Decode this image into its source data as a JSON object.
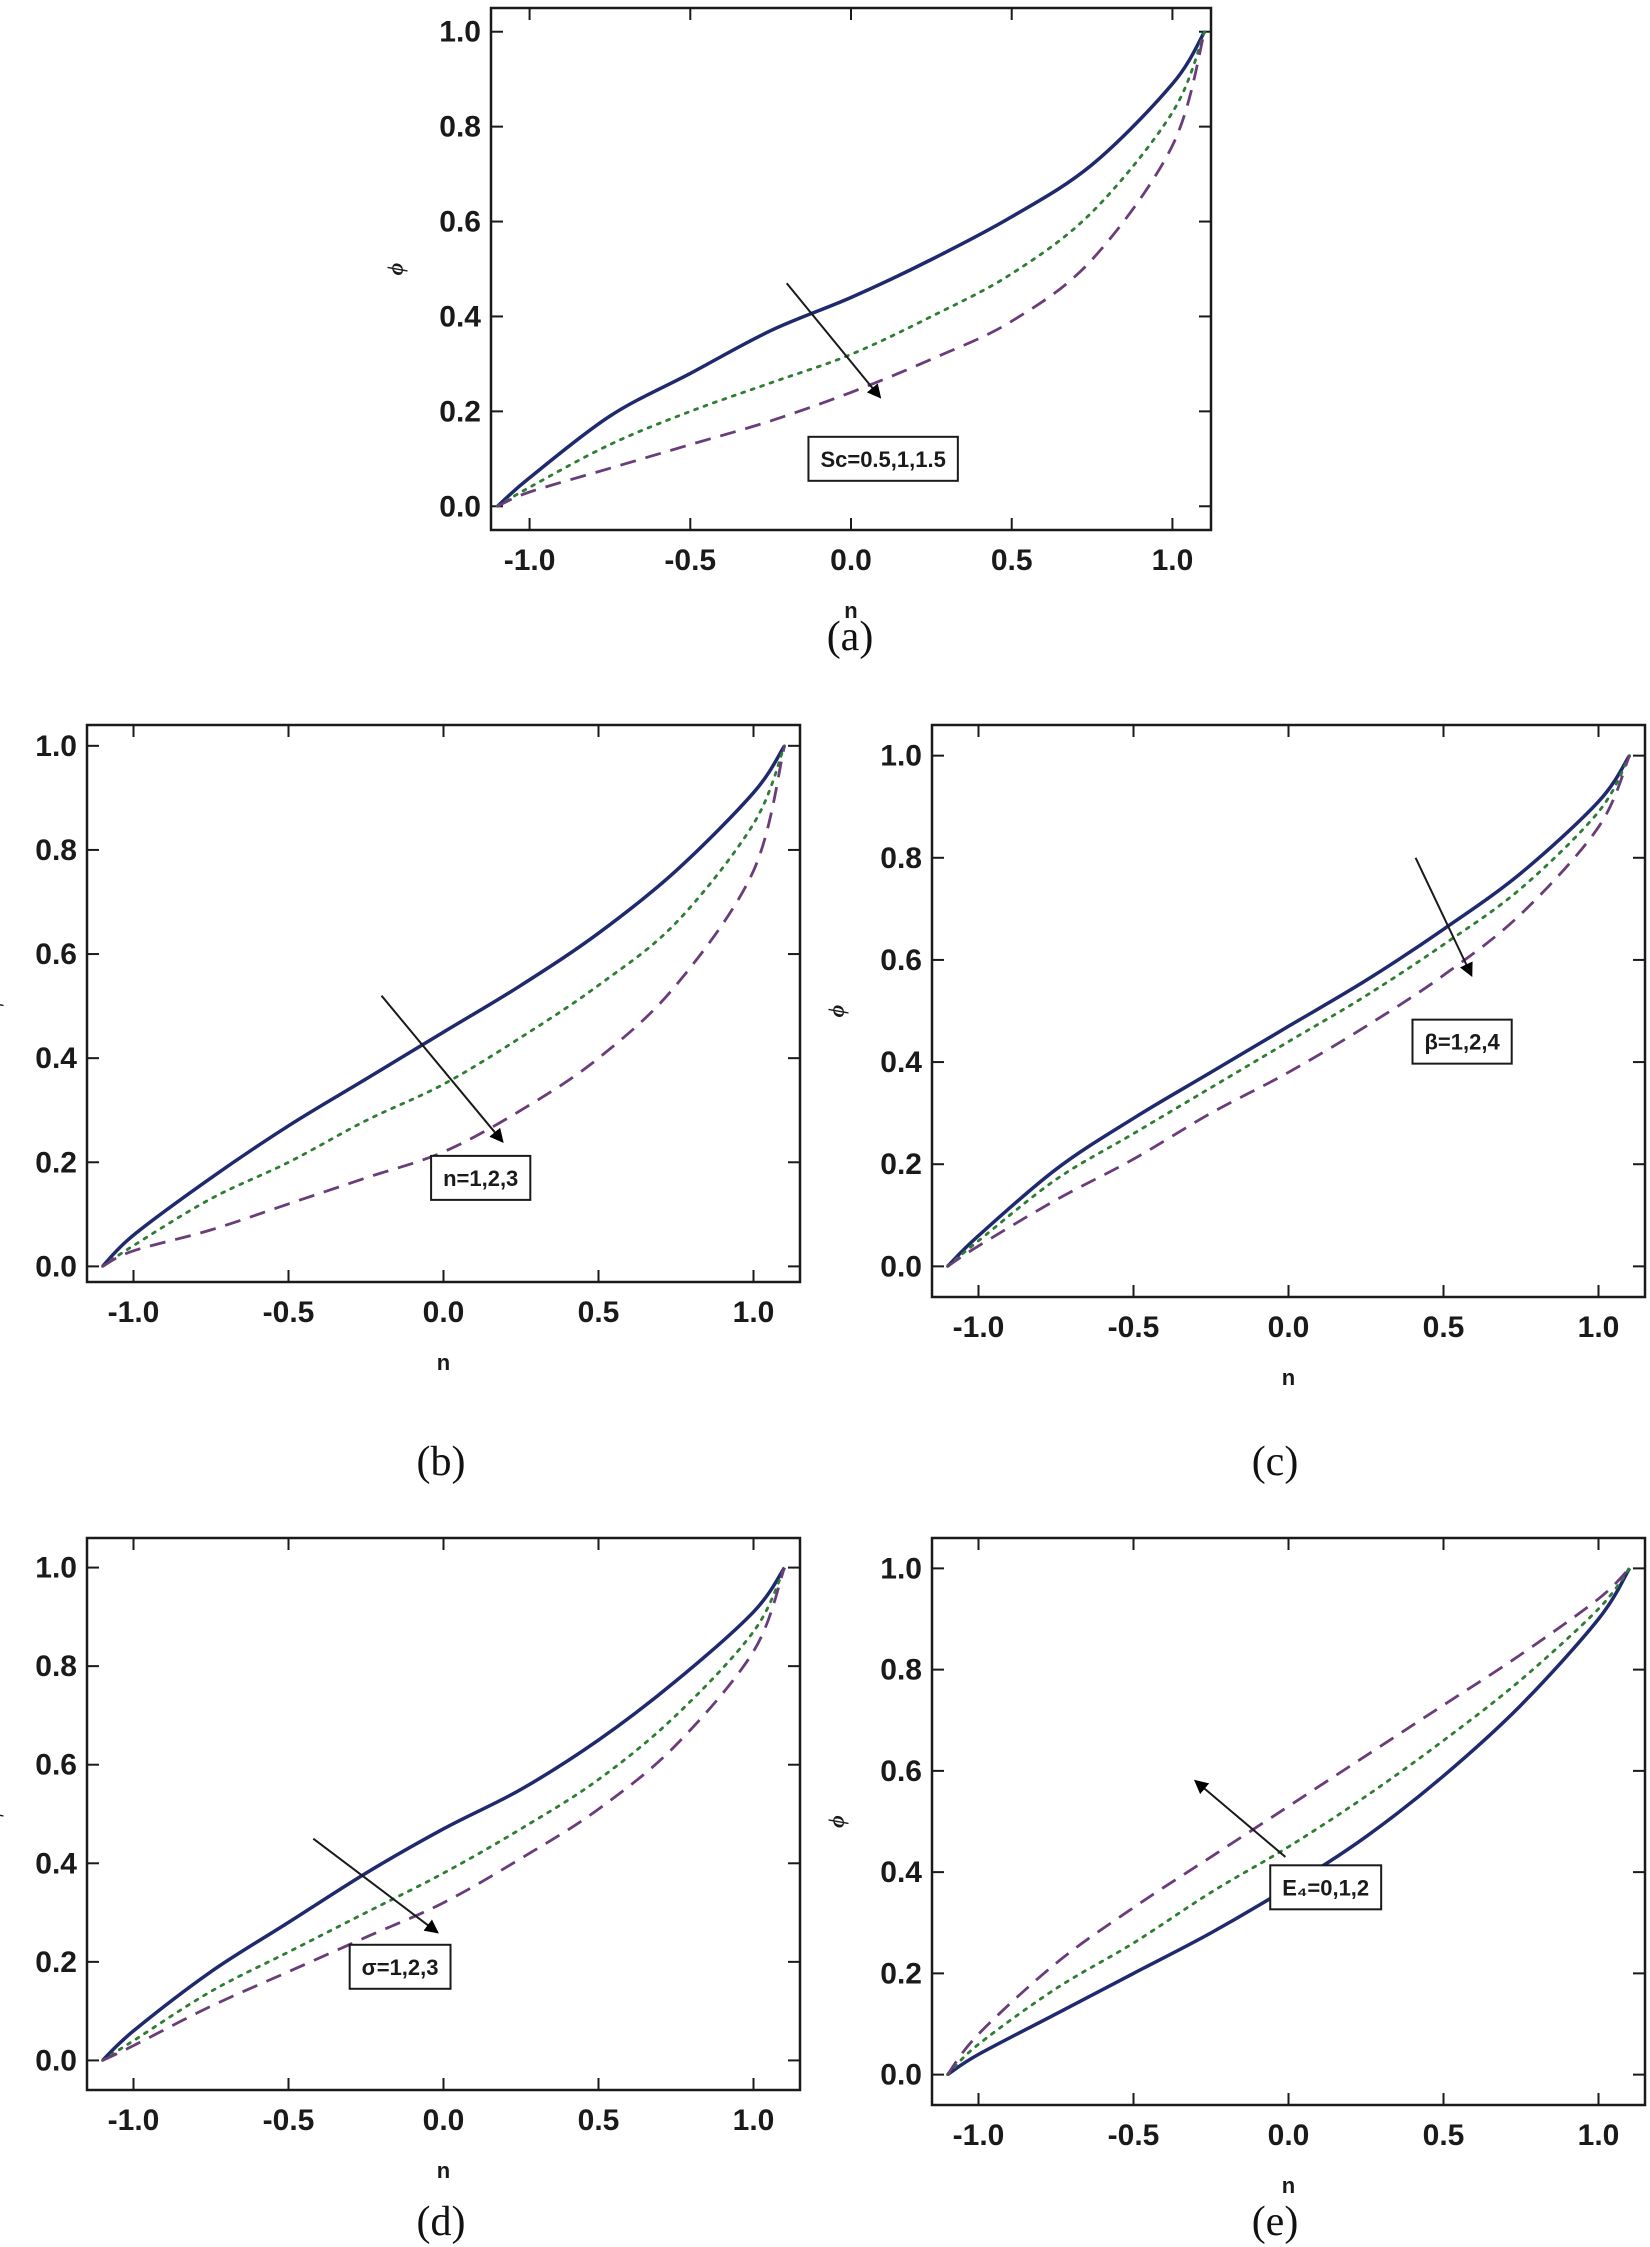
{
  "chart_data": [
    {
      "type": "line",
      "caption": "(a)",
      "xlabel": "n",
      "ylabel": "ϕ",
      "xlim": [
        -1.12,
        1.12
      ],
      "ylim": [
        -0.05,
        1.05
      ],
      "xticks": [
        "-1.0",
        "-0.5",
        "0.0",
        "0.5",
        "1.0"
      ],
      "xtick_values": [
        -1.0,
        -0.5,
        0.0,
        0.5,
        1.0
      ],
      "yticks": [
        "0.0",
        "0.2",
        "0.4",
        "0.6",
        "0.8",
        "1.0"
      ],
      "ytick_values": [
        0.0,
        0.2,
        0.4,
        0.6,
        0.8,
        1.0
      ],
      "annotation": {
        "text": "Sc=0.5,1,1.5",
        "arrow_from": [
          -0.2,
          0.47
        ],
        "arrow_to": [
          0.09,
          0.23
        ],
        "box_at": [
          0.1,
          0.1
        ]
      },
      "x": [
        -1.1,
        -1.0,
        -0.75,
        -0.5,
        -0.25,
        0.0,
        0.25,
        0.5,
        0.75,
        1.0,
        1.1
      ],
      "series": [
        {
          "style": "solid",
          "color": "#1f2a6e",
          "values": [
            0.0,
            0.06,
            0.19,
            0.28,
            0.37,
            0.44,
            0.52,
            0.61,
            0.72,
            0.89,
            1.0
          ]
        },
        {
          "style": "dotted",
          "color": "#2e7d32",
          "values": [
            0.0,
            0.04,
            0.13,
            0.2,
            0.26,
            0.32,
            0.4,
            0.49,
            0.62,
            0.83,
            1.0
          ]
        },
        {
          "style": "dashed",
          "color": "#6a3d7a",
          "values": [
            0.0,
            0.03,
            0.08,
            0.13,
            0.18,
            0.24,
            0.31,
            0.39,
            0.52,
            0.76,
            1.0
          ]
        }
      ]
    },
    {
      "type": "line",
      "caption": "(b)",
      "xlabel": "n",
      "ylabel": "ϕ",
      "xlim": [
        -1.15,
        1.15
      ],
      "ylim": [
        -0.03,
        1.04
      ],
      "xticks": [
        "-1.0",
        "-0.5",
        "0.0",
        "0.5",
        "1.0"
      ],
      "xtick_values": [
        -1.0,
        -0.5,
        0.0,
        0.5,
        1.0
      ],
      "yticks": [
        "0.0",
        "0.2",
        "0.4",
        "0.6",
        "0.8",
        "1.0"
      ],
      "ytick_values": [
        0.0,
        0.2,
        0.4,
        0.6,
        0.8,
        1.0
      ],
      "annotation": {
        "text": "n=1,2,3",
        "arrow_from": [
          -0.2,
          0.52
        ],
        "arrow_to": [
          0.19,
          0.24
        ],
        "box_at": [
          0.12,
          0.17
        ]
      },
      "x": [
        -1.1,
        -1.0,
        -0.75,
        -0.5,
        -0.25,
        0.0,
        0.25,
        0.5,
        0.75,
        1.0,
        1.1
      ],
      "series": [
        {
          "style": "solid",
          "color": "#1f2a6e",
          "values": [
            0.0,
            0.06,
            0.17,
            0.27,
            0.36,
            0.45,
            0.54,
            0.64,
            0.76,
            0.91,
            1.0
          ]
        },
        {
          "style": "dotted",
          "color": "#2e7d32",
          "values": [
            0.0,
            0.04,
            0.13,
            0.2,
            0.28,
            0.35,
            0.44,
            0.54,
            0.66,
            0.85,
            1.0
          ]
        },
        {
          "style": "dashed",
          "color": "#6a3d7a",
          "values": [
            0.0,
            0.03,
            0.07,
            0.12,
            0.17,
            0.22,
            0.3,
            0.4,
            0.54,
            0.76,
            1.0
          ]
        }
      ]
    },
    {
      "type": "line",
      "caption": "(c)",
      "xlabel": "n",
      "ylabel": "ϕ",
      "xlim": [
        -1.15,
        1.15
      ],
      "ylim": [
        -0.06,
        1.06
      ],
      "xticks": [
        "-1.0",
        "-0.5",
        "0.0",
        "0.5",
        "1.0"
      ],
      "xtick_values": [
        -1.0,
        -0.5,
        0.0,
        0.5,
        1.0
      ],
      "yticks": [
        "0.0",
        "0.2",
        "0.4",
        "0.6",
        "0.8",
        "1.0"
      ],
      "ytick_values": [
        0.0,
        0.2,
        0.4,
        0.6,
        0.8,
        1.0
      ],
      "annotation": {
        "text": "β=1,2,4",
        "arrow_from": [
          0.41,
          0.8
        ],
        "arrow_to": [
          0.59,
          0.57
        ],
        "box_at": [
          0.56,
          0.44
        ]
      },
      "x": [
        -1.1,
        -1.0,
        -0.75,
        -0.5,
        -0.25,
        0.0,
        0.25,
        0.5,
        0.75,
        1.0,
        1.1
      ],
      "series": [
        {
          "style": "solid",
          "color": "#1f2a6e",
          "values": [
            0.0,
            0.06,
            0.19,
            0.29,
            0.38,
            0.47,
            0.56,
            0.66,
            0.77,
            0.91,
            1.0
          ]
        },
        {
          "style": "dotted",
          "color": "#2e7d32",
          "values": [
            0.0,
            0.05,
            0.17,
            0.26,
            0.35,
            0.44,
            0.53,
            0.63,
            0.74,
            0.89,
            1.0
          ]
        },
        {
          "style": "dashed",
          "color": "#6a3d7a",
          "values": [
            0.0,
            0.04,
            0.13,
            0.21,
            0.3,
            0.38,
            0.47,
            0.57,
            0.69,
            0.86,
            1.0
          ]
        }
      ]
    },
    {
      "type": "line",
      "caption": "(d)",
      "xlabel": "n",
      "ylabel": "ϕ",
      "xlim": [
        -1.15,
        1.15
      ],
      "ylim": [
        -0.06,
        1.06
      ],
      "xticks": [
        "-1.0",
        "-0.5",
        "0.0",
        "0.5",
        "1.0"
      ],
      "xtick_values": [
        -1.0,
        -0.5,
        0.0,
        0.5,
        1.0
      ],
      "yticks": [
        "0.0",
        "0.2",
        "0.4",
        "0.6",
        "0.8",
        "1.0"
      ],
      "ytick_values": [
        0.0,
        0.2,
        0.4,
        0.6,
        0.8,
        1.0
      ],
      "annotation": {
        "text": "σ=1,2,3",
        "arrow_from": [
          -0.42,
          0.45
        ],
        "arrow_to": [
          -0.02,
          0.26
        ],
        "box_at": [
          -0.14,
          0.19
        ]
      },
      "x": [
        -1.1,
        -1.0,
        -0.75,
        -0.5,
        -0.25,
        0.0,
        0.25,
        0.5,
        0.75,
        1.0,
        1.1
      ],
      "series": [
        {
          "style": "solid",
          "color": "#1f2a6e",
          "values": [
            0.0,
            0.06,
            0.18,
            0.28,
            0.38,
            0.47,
            0.55,
            0.65,
            0.77,
            0.91,
            1.0
          ]
        },
        {
          "style": "dotted",
          "color": "#2e7d32",
          "values": [
            0.0,
            0.04,
            0.14,
            0.22,
            0.3,
            0.38,
            0.47,
            0.57,
            0.7,
            0.87,
            1.0
          ]
        },
        {
          "style": "dashed",
          "color": "#6a3d7a",
          "values": [
            0.0,
            0.03,
            0.11,
            0.18,
            0.25,
            0.32,
            0.41,
            0.51,
            0.64,
            0.83,
            1.0
          ]
        }
      ]
    },
    {
      "type": "line",
      "caption": "(e)",
      "xlabel": "n",
      "ylabel": "ϕ",
      "xlim": [
        -1.15,
        1.15
      ],
      "ylim": [
        -0.06,
        1.06
      ],
      "xticks": [
        "-1.0",
        "-0.5",
        "0.0",
        "0.5",
        "1.0"
      ],
      "xtick_values": [
        -1.0,
        -0.5,
        0.0,
        0.5,
        1.0
      ],
      "yticks": [
        "0.0",
        "0.2",
        "0.4",
        "0.6",
        "0.8",
        "1.0"
      ],
      "ytick_values": [
        0.0,
        0.2,
        0.4,
        0.6,
        0.8,
        1.0
      ],
      "annotation": {
        "text": "E₄=0,1,2",
        "arrow_from": [
          -0.01,
          0.43
        ],
        "arrow_to": [
          -0.3,
          0.58
        ],
        "box_at": [
          0.12,
          0.37
        ]
      },
      "x": [
        -1.1,
        -1.0,
        -0.75,
        -0.5,
        -0.25,
        0.0,
        0.25,
        0.5,
        0.75,
        1.0,
        1.1
      ],
      "series": [
        {
          "style": "solid",
          "color": "#1f2a6e",
          "values": [
            0.0,
            0.04,
            0.12,
            0.2,
            0.28,
            0.37,
            0.47,
            0.59,
            0.73,
            0.9,
            1.0
          ]
        },
        {
          "style": "dotted",
          "color": "#2e7d32",
          "values": [
            0.0,
            0.06,
            0.17,
            0.26,
            0.36,
            0.45,
            0.55,
            0.66,
            0.78,
            0.92,
            1.0
          ]
        },
        {
          "style": "dashed",
          "color": "#6a3d7a",
          "values": [
            0.0,
            0.08,
            0.22,
            0.33,
            0.43,
            0.53,
            0.63,
            0.73,
            0.83,
            0.94,
            1.0
          ]
        }
      ]
    }
  ]
}
